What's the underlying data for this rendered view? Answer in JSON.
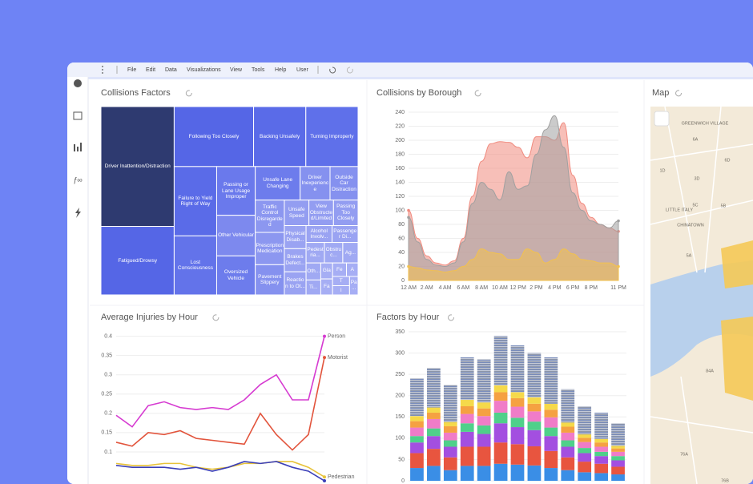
{
  "toolbar": {
    "menu": [
      "File",
      "Edit",
      "Data",
      "Visualizations",
      "View",
      "Tools",
      "Help",
      "User"
    ]
  },
  "chart_data": [
    {
      "type": "treemap",
      "title": "Collisions Factors",
      "items": [
        {
          "label": "Driver Inattention/Distraction",
          "value": 14,
          "color": "#2e3a70"
        },
        {
          "label": "Fatigued/Drowsy",
          "value": 8,
          "color": "#5566e6"
        },
        {
          "label": "Following Too Closely",
          "value": 7.6,
          "color": "#5566e6"
        },
        {
          "label": "Backing Unsafely",
          "value": 5,
          "color": "#5a6be8"
        },
        {
          "label": "Turning Improperly",
          "value": 5,
          "color": "#5f70ea"
        },
        {
          "label": "Failure to Yield Right of Way",
          "value": 4.7,
          "color": "#5a6be8"
        },
        {
          "label": "Lost Consciousness",
          "value": 4,
          "color": "#6373ea"
        },
        {
          "label": "Passing or Lane Usage Improper",
          "value": 3,
          "color": "#6a79ec"
        },
        {
          "label": "Other Vehicular",
          "value": 2.5,
          "color": "#7d89ee"
        },
        {
          "label": "Oversized Vehicle",
          "value": 2.4,
          "color": "#6d7cec"
        },
        {
          "label": "Unsafe Lane Changing",
          "value": 2.4,
          "color": "#6d7cec"
        },
        {
          "label": "Driver Inexperience",
          "value": 1.6,
          "color": "#8591ef"
        },
        {
          "label": "Outside Car Distraction",
          "value": 1.5,
          "color": "#8591ef"
        },
        {
          "label": "Traffic Control Disregarded",
          "value": 1.5,
          "color": "#8c97f0"
        },
        {
          "label": "Prescription Medication",
          "value": 1.5,
          "color": "#8c97f0"
        },
        {
          "label": "Pavement Slippery",
          "value": 1.4,
          "color": "#8591ef"
        },
        {
          "label": "Unsafe Speed",
          "value": 1,
          "color": "#939df1"
        },
        {
          "label": "View Obstructed/Limited",
          "value": 1,
          "color": "#939df1"
        },
        {
          "label": "Passing Too Closely",
          "value": 1,
          "color": "#939df1"
        },
        {
          "label": "Physical Disab...",
          "value": 0.8,
          "color": "#9aa3f2"
        },
        {
          "label": "Brakes Defect...",
          "value": 0.8,
          "color": "#9aa3f2"
        },
        {
          "label": "Reaction to Ot...",
          "value": 0.8,
          "color": "#9aa3f2"
        },
        {
          "label": "Alcohol Involv...",
          "value": 0.7,
          "color": "#9aa3f2"
        },
        {
          "label": "Passenger Di...",
          "value": 0.7,
          "color": "#9aa3f2"
        },
        {
          "label": "Pedestria...",
          "value": 0.6,
          "color": "#a0a9f3"
        },
        {
          "label": "Obstruc...",
          "value": 0.6,
          "color": "#a0a9f3"
        },
        {
          "label": "Ag...",
          "value": 0.5,
          "color": "#a0a9f3"
        },
        {
          "label": "Oth...",
          "value": 0.4,
          "color": "#a0a9f3"
        },
        {
          "label": "Ti...",
          "value": 0.35,
          "color": "#a0a9f3"
        },
        {
          "label": "Gla",
          "value": 0.3,
          "color": "#a6aef4"
        },
        {
          "label": "Fa",
          "value": 0.3,
          "color": "#a6aef4"
        },
        {
          "label": "Fe",
          "value": 0.3,
          "color": "#a6aef4"
        },
        {
          "label": "A",
          "value": 0.25,
          "color": "#a6aef4"
        },
        {
          "label": "T",
          "value": 0.25,
          "color": "#a6aef4"
        },
        {
          "label": "I",
          "value": 0.25,
          "color": "#a6aef4"
        },
        {
          "label": "Pa...",
          "value": 0.25,
          "color": "#a6aef4"
        }
      ]
    },
    {
      "type": "area",
      "title": "Collisions by Borough",
      "categories": [
        "12 AM",
        null,
        "2 AM",
        null,
        "4 AM",
        null,
        "6 AM",
        null,
        "8 AM",
        null,
        "10 AM",
        null,
        "12 PM",
        null,
        "2 PM",
        null,
        "4 PM",
        null,
        "6 PM",
        null,
        "8 PM",
        null,
        null,
        "11 PM"
      ],
      "ylim": [
        0,
        240
      ],
      "yticks": [
        0,
        20,
        40,
        60,
        80,
        100,
        120,
        140,
        160,
        180,
        200,
        220,
        240
      ],
      "series": [
        {
          "color": "#f08a7e",
          "values": [
            100,
            60,
            35,
            25,
            22,
            28,
            60,
            120,
            170,
            195,
            198,
            197,
            190,
            175,
            205,
            205,
            200,
            225,
            150,
            110,
            90,
            80,
            75,
            70
          ]
        },
        {
          "color": "#a0a0a0",
          "values": [
            90,
            55,
            30,
            22,
            20,
            25,
            55,
            110,
            140,
            130,
            115,
            155,
            130,
            135,
            180,
            215,
            235,
            190,
            125,
            100,
            85,
            80,
            75,
            85
          ]
        },
        {
          "color": "#f2c14e",
          "values": [
            20,
            18,
            15,
            14,
            12,
            14,
            20,
            30,
            45,
            40,
            38,
            30,
            30,
            45,
            40,
            25,
            30,
            45,
            38,
            30,
            28,
            25,
            25,
            20
          ]
        }
      ]
    },
    {
      "type": "line",
      "title": "Average Injuries by Hour",
      "ylim": [
        0.05,
        0.42
      ],
      "yticks": [
        0.1,
        0.15,
        0.2,
        0.25,
        0.3,
        0.35,
        0.4
      ],
      "series": [
        {
          "name": "Person",
          "color": "#d63bd1",
          "values": [
            0.195,
            0.165,
            0.22,
            0.23,
            0.215,
            0.21,
            0.215,
            0.21,
            0.235,
            0.275,
            0.3,
            0.235,
            0.235,
            0.4
          ]
        },
        {
          "name": "Motorist",
          "color": "#e2543c",
          "values": [
            0.125,
            0.115,
            0.15,
            0.145,
            0.155,
            0.135,
            0.13,
            0.125,
            0.12,
            0.2,
            0.145,
            0.105,
            0.145,
            0.345
          ]
        },
        {
          "name": "Pedestrian",
          "color": "#e8c33a",
          "values": [
            0.07,
            0.065,
            0.065,
            0.07,
            0.07,
            0.06,
            0.055,
            0.06,
            0.07,
            0.07,
            0.075,
            0.075,
            0.06,
            0.035
          ]
        },
        {
          "color": "#3b3fb8",
          "values": [
            0.065,
            0.06,
            0.06,
            0.06,
            0.055,
            0.06,
            0.05,
            0.06,
            0.075,
            0.07,
            0.075,
            0.06,
            0.05,
            0.025
          ]
        }
      ]
    },
    {
      "type": "stacked_bar",
      "title": "Factors by Hour",
      "ylim": [
        0,
        350
      ],
      "yticks": [
        0,
        50,
        100,
        150,
        200,
        250,
        300,
        350
      ],
      "series": [
        {
          "color": "#3a8ee6",
          "values": [
            30,
            35,
            25,
            35,
            35,
            40,
            38,
            36,
            30,
            25,
            20,
            18,
            15
          ]
        },
        {
          "color": "#e8553f",
          "values": [
            35,
            40,
            30,
            45,
            45,
            50,
            48,
            45,
            40,
            30,
            25,
            22,
            18
          ]
        },
        {
          "color": "#a34fe0",
          "values": [
            25,
            30,
            25,
            35,
            30,
            45,
            40,
            38,
            35,
            25,
            20,
            18,
            15
          ]
        },
        {
          "color": "#4fd08a",
          "values": [
            15,
            18,
            15,
            20,
            20,
            25,
            22,
            20,
            20,
            15,
            12,
            10,
            10
          ]
        },
        {
          "color": "#f07cc8",
          "values": [
            20,
            22,
            18,
            22,
            22,
            28,
            26,
            24,
            24,
            18,
            14,
            12,
            10
          ]
        },
        {
          "color": "#f5a142",
          "values": [
            15,
            15,
            15,
            18,
            18,
            20,
            20,
            18,
            18,
            14,
            10,
            10,
            8
          ]
        },
        {
          "color": "#f5d94a",
          "values": [
            12,
            12,
            10,
            15,
            14,
            16,
            14,
            15,
            14,
            10,
            8,
            8,
            6
          ]
        },
        {
          "color": "#9aa3b5",
          "values": [
            88,
            93,
            87,
            100,
            101,
            116,
            110,
            104,
            109,
            78,
            66,
            62,
            53
          ]
        }
      ]
    }
  ],
  "map": {
    "title": "Map",
    "labels": [
      "GREENWICH VILLAGE",
      "6A",
      "6D",
      "1D",
      "3D",
      "LITTLE ITALY",
      "5C",
      "5B",
      "CHINATOWN",
      "5A",
      "84A",
      "76A",
      "76B"
    ]
  }
}
